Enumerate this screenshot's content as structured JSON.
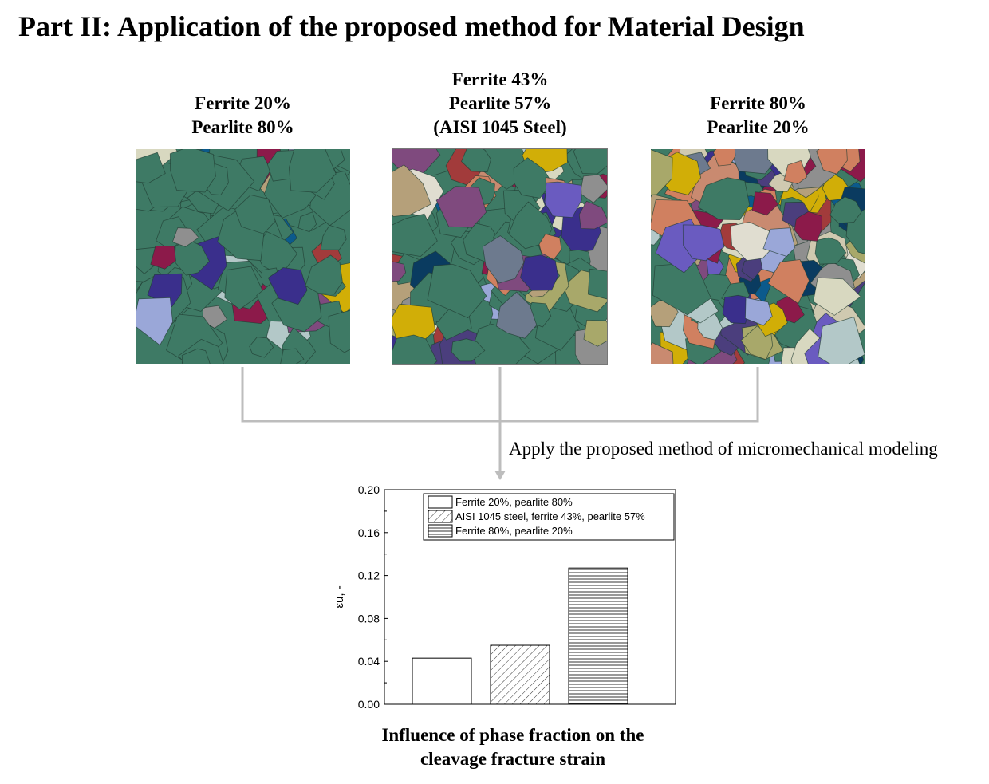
{
  "title": "Part II: Application of the proposed method for Material Design",
  "panels": [
    {
      "lines": [
        "Ferrite 20%",
        "Pearlite 80%"
      ]
    },
    {
      "lines": [
        "Ferrite 43%",
        "Pearlite 57%",
        "(AISI 1045 Steel)"
      ]
    },
    {
      "lines": [
        "Ferrite 80%",
        "Pearlite 20%"
      ]
    }
  ],
  "apply_text": "Apply the proposed method of micromechanical modeling",
  "caption": [
    "Influence of phase fraction on the",
    "cleavage fracture strain"
  ],
  "colors": {
    "ferrite": "#3e7a65",
    "grain_border": "#1f3a30",
    "connector": "#bdbdbd",
    "grains": [
      "#0b5a8c",
      "#a23b3b",
      "#d1ae07",
      "#8c1a4a",
      "#d8d8c0",
      "#b5a07a",
      "#c98a70",
      "#3a2f8c",
      "#6a5bc0",
      "#9aa7d8",
      "#b3c8c8",
      "#8f8f8f",
      "#a8a86a",
      "#cfc9b0",
      "#7f4a7e",
      "#6d7a8e",
      "#e0ddd0",
      "#4b3e7d",
      "#d08060",
      "#0a3b60"
    ]
  },
  "chart_data": {
    "type": "bar",
    "categories": [
      "Ferrite 20%, pearlite 80%",
      "AISI 1045 steel, ferrite 43%, pearlite 57%",
      "Ferrite 80%, pearlite 20%"
    ],
    "values": [
      0.043,
      0.055,
      0.127
    ],
    "patterns": [
      "none",
      "diagonal",
      "horizontal"
    ],
    "ylabel": "εu, -",
    "ylim": [
      0,
      0.2
    ],
    "yticks": [
      "0.00",
      "0.04",
      "0.08",
      "0.12",
      "0.16",
      "0.20"
    ],
    "legend": [
      "Ferrite 20%, pearlite 80%",
      "AISI 1045 steel, ferrite 43%, pearlite 57%",
      "Ferrite 80%, pearlite 20%"
    ],
    "legend_position": "top"
  }
}
